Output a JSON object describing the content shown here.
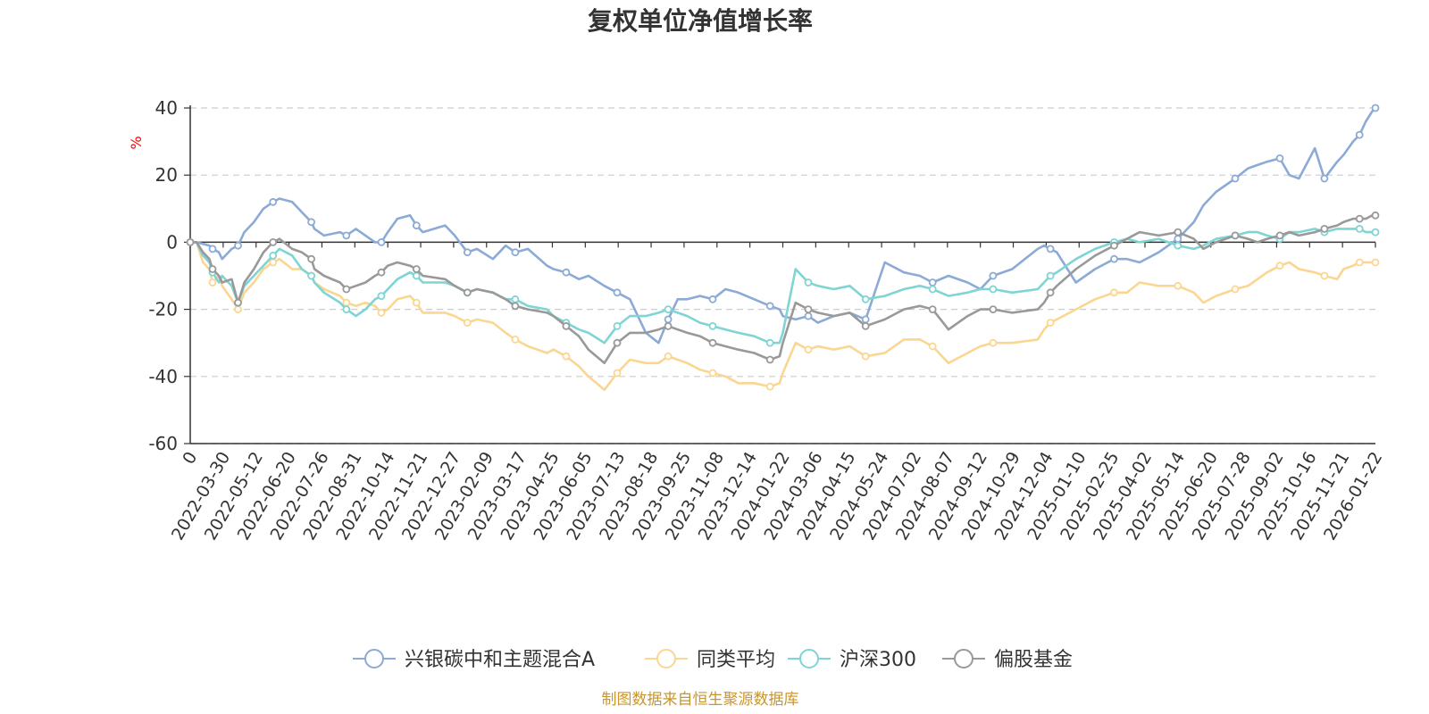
{
  "chart_data": {
    "type": "line",
    "title": "复权单位净值增长率",
    "ylabel": "%",
    "ylim": [
      -60,
      40
    ],
    "yticks": [
      -60,
      -40,
      -20,
      0,
      20,
      40
    ],
    "grid": true,
    "legend_position": "bottom",
    "source": "制图数据来自恒生聚源数据库",
    "x_tick_labels": [
      "0",
      "2022-03-30",
      "2022-05-12",
      "2022-06-20",
      "2022-07-26",
      "2022-08-31",
      "2022-10-14",
      "2022-11-21",
      "2022-12-27",
      "2023-02-09",
      "2023-03-17",
      "2023-04-25",
      "2023-06-05",
      "2023-07-13",
      "2023-08-18",
      "2023-09-25",
      "2023-11-08",
      "2023-12-14",
      "2024-01-22",
      "2024-03-06",
      "2024-04-15",
      "2024-05-24",
      "2024-07-02",
      "2024-08-07",
      "2024-09-12",
      "2024-10-29",
      "2024-12-04",
      "2025-01-10",
      "2025-02-25",
      "2025-04-02",
      "2025-05-14",
      "2025-06-20",
      "2025-07-28",
      "2025-09-02",
      "2025-10-16",
      "2025-11-21",
      "2026-01-22"
    ],
    "colors": {
      "axis": "#333333",
      "grid": "#cccccc",
      "title": "#333333",
      "unit": "#ff0000",
      "source": "#c8962d"
    },
    "x": [
      0,
      0.02,
      0.04,
      0.06,
      0.07,
      0.09,
      0.1,
      0.13,
      0.15,
      0.17,
      0.2,
      0.23,
      0.26,
      0.28,
      0.32,
      0.35,
      0.38,
      0.39,
      0.42,
      0.47,
      0.49,
      0.52,
      0.55,
      0.58,
      0.6,
      0.62,
      0.65,
      0.69,
      0.71,
      0.73,
      0.8,
      0.83,
      0.87,
      0.9,
      0.95,
      0.99,
      1.02,
      1.06,
      1.12,
      1.14,
      1.18,
      1.22,
      1.25,
      1.3,
      1.34,
      1.38,
      1.43,
      1.47,
      1.5,
      1.53,
      1.56,
      1.6,
      1.64,
      1.68,
      1.72,
      1.77,
      1.82,
      1.85,
      1.86,
      1.9,
      1.94,
      1.97,
      2.02,
      2.07,
      2.12,
      2.18,
      2.24,
      2.29,
      2.33,
      2.38,
      2.44,
      2.48,
      2.52,
      2.58,
      2.66,
      2.68,
      2.7,
      2.72,
      2.78,
      2.84,
      2.9,
      2.94,
      2.98,
      3.04,
      3.1,
      3.15,
      3.18,
      3.22,
      3.28,
      3.32,
      3.35,
      3.38,
      3.42,
      3.45,
      3.48,
      3.53,
      3.56,
      3.6,
      3.62,
      3.65,
      3.67,
      3.69,
      3.71,
      3.72
    ],
    "series": [
      {
        "name": "兴银碳中和主题混合A",
        "color": "#8caad6",
        "values": [
          0,
          0,
          -0.5,
          -1,
          -2,
          -3,
          -5,
          -2,
          -1,
          3,
          6,
          10,
          12,
          13,
          12,
          9,
          6,
          4,
          2,
          3,
          2,
          4,
          2,
          0,
          0,
          3,
          7,
          8,
          5,
          3,
          5,
          2,
          -3,
          -2,
          -5,
          -1,
          -3,
          -2,
          -7,
          -8,
          -9,
          -11,
          -10,
          -13,
          -15,
          -17,
          -27,
          -30,
          -23,
          -17,
          -17,
          -16,
          -17,
          -14,
          -15,
          -17,
          -19,
          -20,
          -22,
          -23,
          -22,
          -24,
          -22,
          -21,
          -23,
          -6,
          -9,
          -10,
          -12,
          -10,
          -12,
          -14,
          -10,
          -8,
          -2,
          -1,
          -2,
          -3,
          -12,
          -8,
          -5,
          -5,
          -6,
          -3,
          1,
          6,
          11,
          15,
          19,
          22,
          23,
          24,
          25,
          20,
          19,
          28,
          19,
          24,
          26,
          30,
          32,
          36,
          39,
          40
        ]
      },
      {
        "name": "同类平均",
        "color": "#fbd691",
        "values": [
          0,
          0,
          -6,
          -8,
          -12,
          -10,
          -13,
          -17,
          -20,
          -15,
          -12,
          -8,
          -6,
          -5,
          -8,
          -8,
          -10,
          -12,
          -14,
          -16,
          -18,
          -19,
          -18,
          -19,
          -21,
          -20,
          -17,
          -16,
          -18,
          -21,
          -21,
          -22,
          -24,
          -23,
          -24,
          -27,
          -29,
          -31,
          -33,
          -32,
          -34,
          -37,
          -40,
          -44,
          -39,
          -35,
          -36,
          -36,
          -34,
          -35,
          -36,
          -38,
          -39,
          -40,
          -42,
          -42,
          -43,
          -42,
          -39,
          -30,
          -32,
          -31,
          -32,
          -31,
          -34,
          -33,
          -29,
          -29,
          -31,
          -36,
          -33,
          -31,
          -30,
          -30,
          -29,
          -26,
          -24,
          -23,
          -20,
          -17,
          -15,
          -15,
          -12,
          -13,
          -13,
          -15,
          -18,
          -16,
          -14,
          -13,
          -11,
          -9,
          -7,
          -6,
          -8,
          -9,
          -10,
          -11,
          -8,
          -7,
          -6,
          -6,
          -6,
          -6
        ]
      },
      {
        "name": "沪深300",
        "color": "#7fd4d4",
        "values": [
          0,
          0,
          -4,
          -6,
          -9,
          -12,
          -10,
          -13,
          -18,
          -13,
          -10,
          -7,
          -4,
          -2,
          -4,
          -8,
          -10,
          -12,
          -15,
          -18,
          -20,
          -22,
          -20,
          -17,
          -16,
          -14,
          -11,
          -9,
          -10,
          -12,
          -12,
          -13,
          -15,
          -14,
          -15,
          -17,
          -17,
          -19,
          -20,
          -22,
          -24,
          -26,
          -27,
          -30,
          -25,
          -22,
          -22,
          -21,
          -20,
          -21,
          -22,
          -24,
          -25,
          -26,
          -27,
          -28,
          -30,
          -30,
          -27,
          -8,
          -12,
          -13,
          -14,
          -13,
          -17,
          -16,
          -14,
          -13,
          -14,
          -16,
          -15,
          -14,
          -14,
          -15,
          -14,
          -12,
          -10,
          -9,
          -5,
          -2,
          0,
          1,
          0,
          1,
          -1,
          -2,
          -1,
          1,
          2,
          3,
          3,
          2,
          1,
          3,
          3,
          4,
          3,
          4,
          4,
          4,
          4,
          3,
          3,
          3
        ]
      },
      {
        "name": "偏股基金",
        "color": "#999999",
        "values": [
          0,
          0,
          -3,
          -5,
          -8,
          -10,
          -12,
          -11,
          -18,
          -12,
          -8,
          -3,
          0,
          1,
          -2,
          -3,
          -5,
          -8,
          -10,
          -12,
          -14,
          -13,
          -12,
          -10,
          -9,
          -7,
          -6,
          -7,
          -8,
          -10,
          -11,
          -13,
          -15,
          -14,
          -15,
          -17,
          -19,
          -20,
          -21,
          -22,
          -25,
          -28,
          -32,
          -36,
          -30,
          -27,
          -27,
          -26,
          -25,
          -26,
          -27,
          -28,
          -30,
          -31,
          -32,
          -33,
          -35,
          -34,
          -30,
          -18,
          -20,
          -21,
          -22,
          -21,
          -25,
          -23,
          -20,
          -19,
          -20,
          -26,
          -22,
          -20,
          -20,
          -21,
          -20,
          -18,
          -15,
          -13,
          -8,
          -4,
          -1,
          1,
          3,
          2,
          3,
          1,
          -2,
          0,
          2,
          1,
          0,
          1,
          2,
          3,
          2,
          3,
          4,
          5,
          6,
          7,
          7,
          7,
          8,
          8
        ]
      }
    ]
  }
}
